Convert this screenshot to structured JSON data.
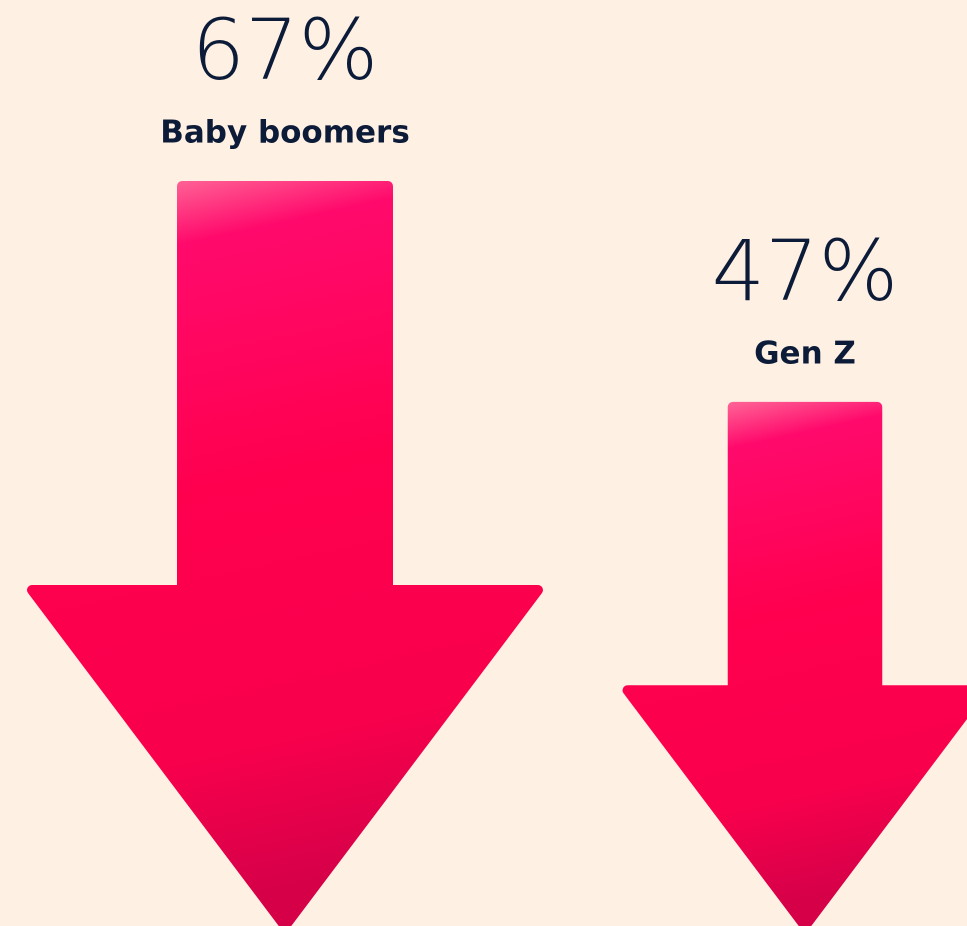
{
  "chart_data": {
    "type": "arrow",
    "categories": [
      "Baby boomers",
      "Gen Z"
    ],
    "values": [
      67,
      47
    ],
    "value_labels": [
      "67%",
      "47%"
    ],
    "color": "#ff0050"
  }
}
